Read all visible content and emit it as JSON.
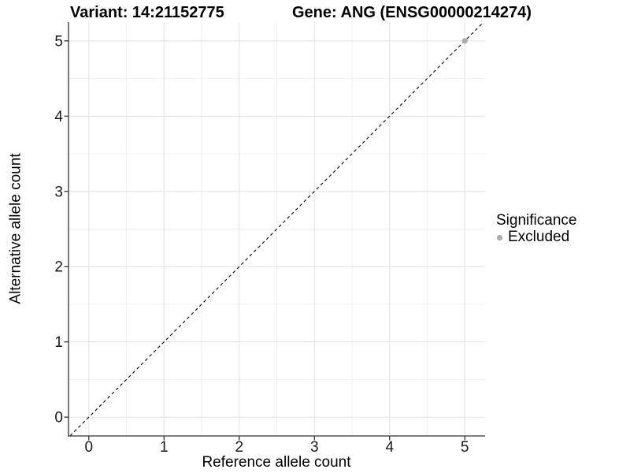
{
  "colors": {
    "background": "#ffffff",
    "grid_major": "#e2e2e2",
    "grid_minor": "#f0f0f0",
    "axis_line": "#333333",
    "tick_text": "#1a1a1a",
    "title_text": "#000000",
    "excluded_point": "#ababab"
  },
  "chart_data": {
    "type": "scatter",
    "titles": {
      "left": "Variant: 14:21152775",
      "right": "Gene: ANG (ENSG00000214274)"
    },
    "xlabel": "Reference allele count",
    "ylabel": "Alternative allele count",
    "xlim": [
      -0.27,
      5.27
    ],
    "ylim": [
      -0.25,
      5.25
    ],
    "xticks": [
      0,
      1,
      2,
      3,
      4,
      5
    ],
    "yticks": [
      0,
      1,
      2,
      3,
      4,
      5
    ],
    "xminor": [
      0.5,
      1.5,
      2.5,
      3.5,
      4.5
    ],
    "yminor": [
      0.5,
      1.5,
      2.5,
      3.5,
      4.5
    ],
    "grid": "major+minor",
    "reference_line": {
      "type": "identity",
      "slope": 1,
      "intercept": 0,
      "style": "dashed",
      "color": "#000000"
    },
    "series": [
      {
        "name": "Excluded",
        "color": "#ababab",
        "points": [
          {
            "x": 5,
            "y": 5
          }
        ]
      }
    ],
    "legend": {
      "title": "Significance",
      "position": "right",
      "entries": [
        {
          "label": "Excluded",
          "color": "#ababab",
          "marker": "circle"
        }
      ]
    }
  }
}
